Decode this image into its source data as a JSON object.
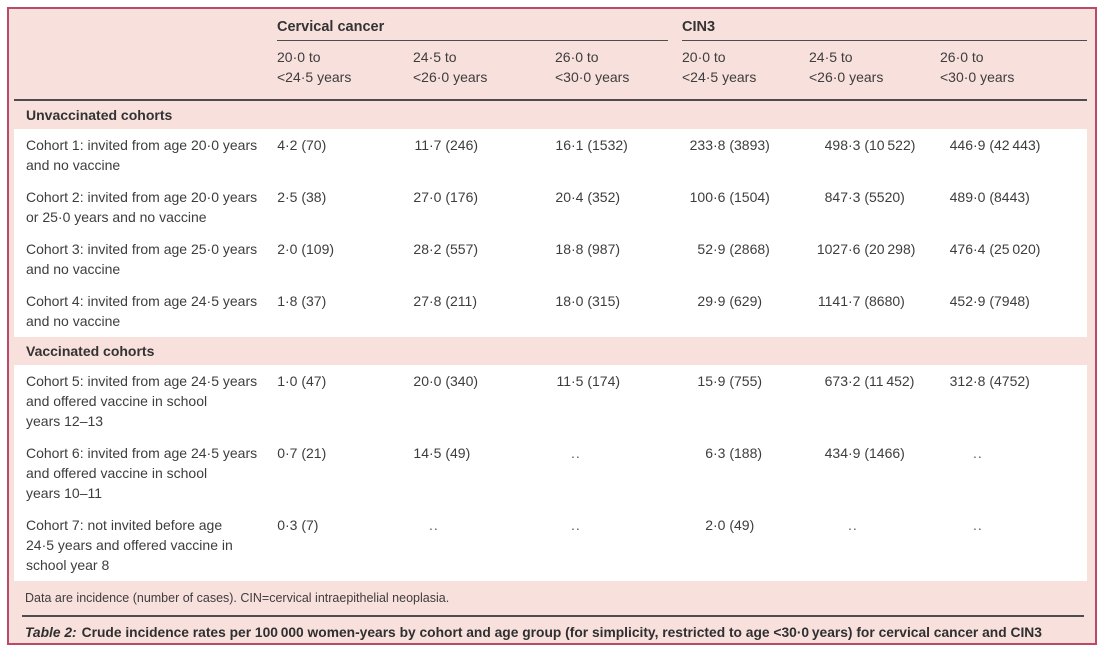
{
  "colors": {
    "panel_border": "#bb4a68",
    "panel_background": "#f8e0dd",
    "row_background": "#ffffff",
    "rule_dark": "#4d4d4d",
    "text": "#3d3d3d"
  },
  "table": {
    "groups": [
      {
        "label": "Cervical cancer"
      },
      {
        "label": "CIN3"
      }
    ],
    "age_columns": [
      {
        "line1": "20·0 to",
        "line2": "<24·5 years"
      },
      {
        "line1": "24·5 to",
        "line2": "<26·0 years"
      },
      {
        "line1": "26·0 to",
        "line2": "<30·0 years"
      },
      {
        "line1": "20·0 to",
        "line2": "<24·5 years"
      },
      {
        "line1": "24·5 to",
        "line2": "<26·0 years"
      },
      {
        "line1": "26·0 to",
        "line2": "<30·0 years"
      }
    ],
    "sections": [
      {
        "title": "Unvaccinated cohorts",
        "rows": [
          {
            "label_lines": [
              "Cohort 1: invited from age 20·0 years",
              "and no vaccine"
            ],
            "values": [
              "4·2 (70)",
              "11·7 (246)",
              "16·1 (1532)",
              "233·8 (3893)",
              "498·3 (10 522)",
              "446·9 (42 443)"
            ]
          },
          {
            "label_lines": [
              "Cohort 2: invited from age 20·0 years",
              "or 25·0 years and no vaccine"
            ],
            "values": [
              "2·5 (38)",
              "27·0 (176)",
              "20·4 (352)",
              "100·6 (1504)",
              "847·3 (5520)",
              "489·0 (8443)"
            ]
          },
          {
            "label_lines": [
              "Cohort 3: invited from age 25·0 years",
              "and no vaccine"
            ],
            "values": [
              "2·0 (109)",
              "28·2 (557)",
              "18·8 (987)",
              "52·9 (2868)",
              "1027·6 (20 298)",
              "476·4 (25 020)"
            ]
          },
          {
            "label_lines": [
              "Cohort 4: invited from age 24·5 years",
              "and no vaccine"
            ],
            "values": [
              "1·8 (37)",
              "27·8 (211)",
              "18·0 (315)",
              "29·9 (629)",
              "1141·7 (8680)",
              "452·9 (7948)"
            ]
          }
        ]
      },
      {
        "title": "Vaccinated cohorts",
        "rows": [
          {
            "label_lines": [
              "Cohort 5: invited from age 24·5 years",
              "and offered vaccine in school",
              "years 12–13"
            ],
            "values": [
              "1·0 (47)",
              "20·0 (340)",
              "11·5 (174)",
              "15·9 (755)",
              "673·2 (11 452)",
              "312·8 (4752)"
            ]
          },
          {
            "label_lines": [
              "Cohort 6: invited from age 24·5 years",
              "and offered vaccine in school",
              "years 10–11"
            ],
            "values": [
              "0·7 (21)",
              "14·5 (49)",
              "..",
              "6·3 (188)",
              "434·9 (1466)",
              ".."
            ]
          },
          {
            "label_lines": [
              "Cohort 7: not invited before age",
              "24·5 years and offered vaccine in",
              "school year 8"
            ],
            "values": [
              "0·3 (7)",
              "..",
              "..",
              "2·0 (49)",
              "..",
              ".."
            ]
          }
        ]
      }
    ],
    "footnote": "Data are incidence (number of cases). CIN=cervical intraepithelial neoplasia.",
    "caption_prefix": "Table 2:",
    "caption_text": "Crude incidence rates per 100 000 women-years by cohort and age group (for simplicity, restricted to age <30·0 years) for cervical cancer and CIN3"
  }
}
